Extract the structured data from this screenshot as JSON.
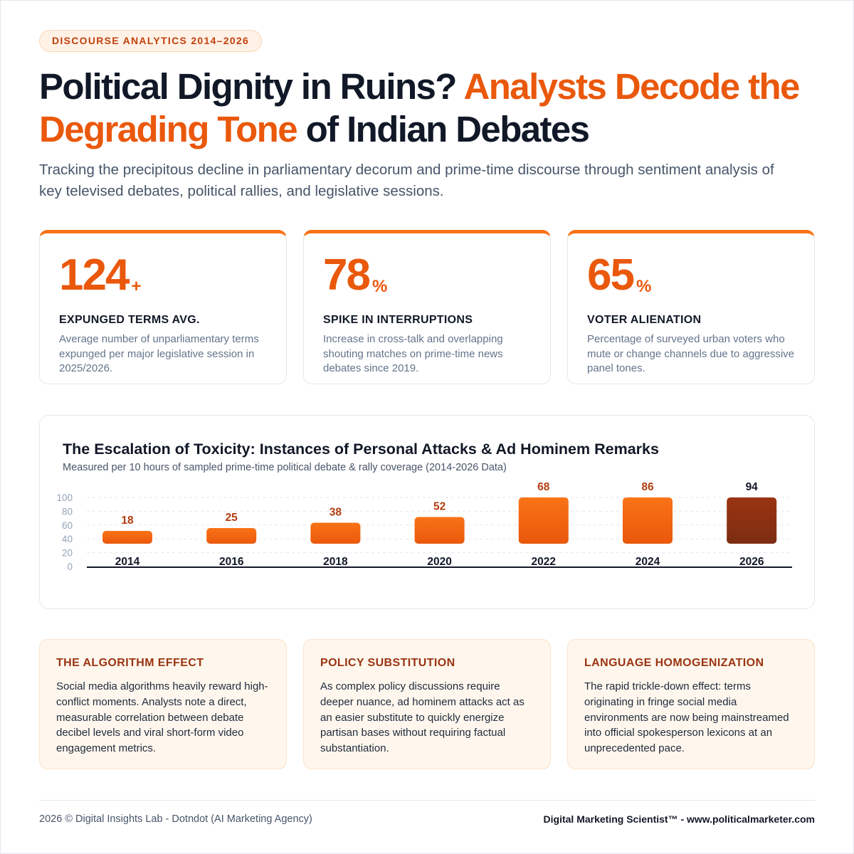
{
  "badge": "DISCOURSE ANALYTICS 2014–2026",
  "headline": {
    "part1": "Political Dignity in Ruins? ",
    "part2": "Analysts Decode the Degrading Tone",
    "part3": " of Indian Debates"
  },
  "subtitle": "Tracking the precipitous decline in parliamentary decorum and prime-time discourse through sentiment analysis of key televised debates, political rallies, and legislative sessions.",
  "stats": [
    {
      "value": "124",
      "suffix": "+",
      "label": "EXPUNGED TERMS AVG.",
      "description": "Average number of unparliamentary terms expunged per major legislative session in 2025/2026."
    },
    {
      "value": "78",
      "suffix": "%",
      "label": "SPIKE IN INTERRUPTIONS",
      "description": "Increase in cross-talk and overlapping shouting matches on prime-time news debates since 2019."
    },
    {
      "value": "65",
      "suffix": "%",
      "label": "VOTER ALIENATION",
      "description": "Percentage of surveyed urban voters who mute or change channels due to aggressive panel tones."
    }
  ],
  "colors": {
    "accent": "#ea580c",
    "bar_top": "#f97316",
    "bar_bottom": "#ea580c",
    "bar_highlight_top": "#9a3412",
    "bar_highlight_bottom": "#7c2d12",
    "value_label": "#b43c0f"
  },
  "chart_data": {
    "type": "bar",
    "title": "The Escalation of Toxicity: Instances of Personal Attacks & Ad Hominem Remarks",
    "subtitle": "Measured per 10 hours of sampled prime-time political debate & rally coverage (2014-2026 Data)",
    "categories": [
      "2014",
      "2016",
      "2018",
      "2020",
      "2022",
      "2024",
      "2026"
    ],
    "values": [
      18,
      25,
      38,
      52,
      68,
      86,
      94
    ],
    "highlight_category": "2026",
    "ylim": [
      0,
      100
    ],
    "yticks": [
      0,
      20,
      40,
      60,
      80,
      100
    ],
    "xlabel": "",
    "ylabel": "",
    "grid": true,
    "legend": "none"
  },
  "insights": [
    {
      "title": "THE ALGORITHM EFFECT",
      "body": "Social media algorithms heavily reward high-conflict moments. Analysts note a direct, measurable correlation between debate decibel levels and viral short-form video engagement metrics."
    },
    {
      "title": "POLICY SUBSTITUTION",
      "body": "As complex policy discussions require deeper nuance, ad hominem attacks act as an easier substitute to quickly energize partisan bases without requiring factual substantiation."
    },
    {
      "title": "LANGUAGE HOMOGENIZATION",
      "body": "The rapid trickle-down effect: terms originating in fringe social media environments are now being mainstreamed into official spokesperson lexicons at an unprecedented pace."
    }
  ],
  "footer": {
    "left": "2026 © Digital Insights Lab - Dotndot (AI Marketing Agency)",
    "right": "Digital Marketing Scientist™ - www.politicalmarketer.com"
  }
}
